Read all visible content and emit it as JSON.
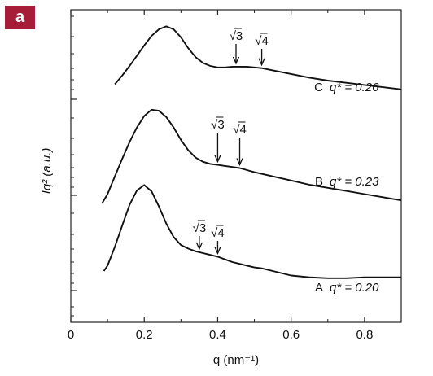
{
  "panel_label": "a",
  "chart_data": {
    "type": "line",
    "xlabel": "q (nm⁻¹)",
    "ylabel": "Iq² (a.u.)",
    "xlim": [
      0,
      0.9
    ],
    "x_ticks": [
      "0",
      "0.2",
      "0.4",
      "0.6",
      "0.8"
    ],
    "y_scale": "log",
    "y_tick_labels": "none",
    "grid": false,
    "legend": "none",
    "series": [
      {
        "label": "C",
        "annotation_text": "q* = 0.26",
        "q_star": 0.26,
        "peaks": [
          {
            "mark": "√3",
            "q": 0.45
          },
          {
            "mark": "√4",
            "q": 0.52
          }
        ],
        "points": [
          [
            0.12,
            0.15
          ],
          [
            0.14,
            0.27
          ],
          [
            0.16,
            0.4
          ],
          [
            0.18,
            0.54
          ],
          [
            0.2,
            0.68
          ],
          [
            0.22,
            0.81
          ],
          [
            0.24,
            0.9
          ],
          [
            0.26,
            0.94
          ],
          [
            0.28,
            0.9
          ],
          [
            0.3,
            0.79
          ],
          [
            0.32,
            0.64
          ],
          [
            0.34,
            0.52
          ],
          [
            0.36,
            0.44
          ],
          [
            0.38,
            0.4
          ],
          [
            0.4,
            0.38
          ],
          [
            0.42,
            0.38
          ],
          [
            0.44,
            0.39
          ],
          [
            0.46,
            0.39
          ],
          [
            0.48,
            0.39
          ],
          [
            0.5,
            0.38
          ],
          [
            0.52,
            0.37
          ],
          [
            0.55,
            0.34
          ],
          [
            0.6,
            0.29
          ],
          [
            0.65,
            0.24
          ],
          [
            0.7,
            0.2
          ],
          [
            0.75,
            0.17
          ],
          [
            0.8,
            0.14
          ],
          [
            0.85,
            0.11
          ],
          [
            0.9,
            0.08
          ]
        ]
      },
      {
        "label": "B",
        "annotation_text": "q* = 0.23",
        "q_star": 0.23,
        "peaks": [
          {
            "mark": "√3",
            "q": 0.4
          },
          {
            "mark": "√4",
            "q": 0.46
          }
        ],
        "points": [
          [
            0.085,
            0.0
          ],
          [
            0.1,
            0.09
          ],
          [
            0.12,
            0.26
          ],
          [
            0.14,
            0.43
          ],
          [
            0.16,
            0.59
          ],
          [
            0.18,
            0.73
          ],
          [
            0.2,
            0.84
          ],
          [
            0.22,
            0.9
          ],
          [
            0.24,
            0.89
          ],
          [
            0.26,
            0.83
          ],
          [
            0.28,
            0.73
          ],
          [
            0.3,
            0.61
          ],
          [
            0.32,
            0.51
          ],
          [
            0.34,
            0.44
          ],
          [
            0.36,
            0.4
          ],
          [
            0.38,
            0.38
          ],
          [
            0.4,
            0.37
          ],
          [
            0.42,
            0.36
          ],
          [
            0.44,
            0.35
          ],
          [
            0.46,
            0.34
          ],
          [
            0.48,
            0.32
          ],
          [
            0.5,
            0.3
          ],
          [
            0.55,
            0.26
          ],
          [
            0.6,
            0.22
          ],
          [
            0.65,
            0.18
          ],
          [
            0.7,
            0.15
          ],
          [
            0.75,
            0.12
          ],
          [
            0.8,
            0.09
          ],
          [
            0.85,
            0.06
          ],
          [
            0.9,
            0.03
          ]
        ]
      },
      {
        "label": "A",
        "annotation_text": "q* = 0.20",
        "q_star": 0.2,
        "peaks": [
          {
            "mark": "√3",
            "q": 0.35
          },
          {
            "mark": "√4",
            "q": 0.4
          }
        ],
        "points": [
          [
            0.09,
            0.0
          ],
          [
            0.1,
            0.06
          ],
          [
            0.12,
            0.27
          ],
          [
            0.14,
            0.51
          ],
          [
            0.16,
            0.74
          ],
          [
            0.18,
            0.9
          ],
          [
            0.2,
            0.96
          ],
          [
            0.22,
            0.89
          ],
          [
            0.24,
            0.72
          ],
          [
            0.26,
            0.53
          ],
          [
            0.28,
            0.38
          ],
          [
            0.3,
            0.29
          ],
          [
            0.32,
            0.25
          ],
          [
            0.34,
            0.22
          ],
          [
            0.36,
            0.2
          ],
          [
            0.38,
            0.18
          ],
          [
            0.4,
            0.16
          ],
          [
            0.42,
            0.13
          ],
          [
            0.44,
            0.1
          ],
          [
            0.46,
            0.08
          ],
          [
            0.48,
            0.06
          ],
          [
            0.5,
            0.04
          ],
          [
            0.52,
            0.03
          ],
          [
            0.55,
            0.0
          ],
          [
            0.6,
            -0.05
          ],
          [
            0.65,
            -0.07
          ],
          [
            0.7,
            -0.08
          ],
          [
            0.75,
            -0.08
          ],
          [
            0.8,
            -0.07
          ],
          [
            0.85,
            -0.07
          ],
          [
            0.9,
            -0.07
          ]
        ]
      }
    ]
  }
}
